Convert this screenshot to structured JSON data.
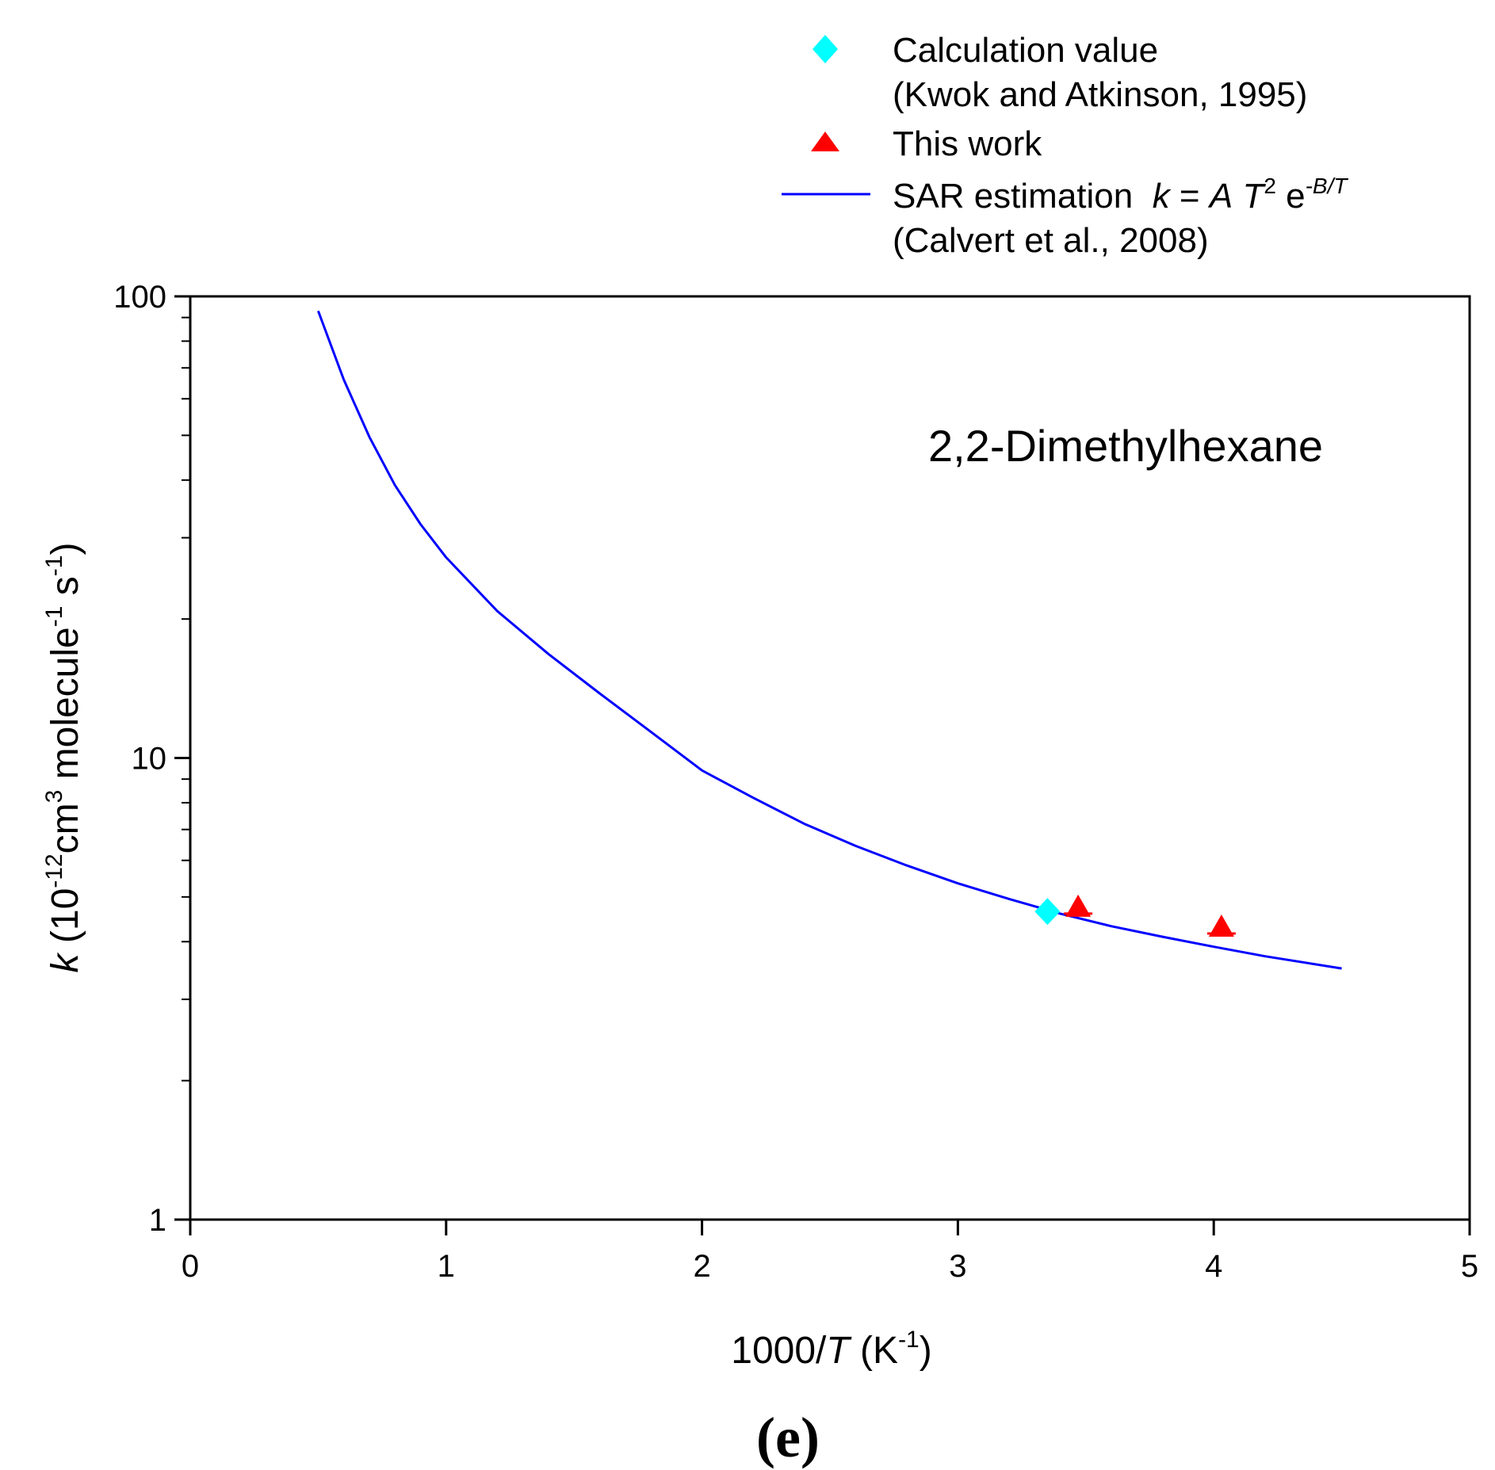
{
  "chart_data": {
    "type": "scatter",
    "title": "2,2-Dimethylhexane",
    "panel_label": "(e)",
    "xlabel": {
      "prefix": "1000/",
      "var": "T",
      "unit_open": " (K",
      "unit_sup": "-1",
      "unit_close": ")"
    },
    "ylabel": {
      "var": "k",
      "p1": " (10",
      "s1": "-12",
      "p2": "cm",
      "s2": "3",
      "p3": " molecule",
      "s3": "-1",
      "p4": " s",
      "s4": "-1",
      "p5": ")"
    },
    "xlim": [
      0,
      5
    ],
    "ylim": [
      1,
      100
    ],
    "yscale": "log",
    "xticks": [
      0,
      1,
      2,
      3,
      4,
      5
    ],
    "xtick_labels": [
      "0",
      "1",
      "2",
      "3",
      "4",
      "5"
    ],
    "yticks": [
      1,
      10,
      100
    ],
    "ytick_labels": [
      "1",
      "10",
      "100"
    ],
    "series": [
      {
        "name": "Calculation value (Kwok and Atkinson, 1995)",
        "kind": "scatter",
        "marker": "diamond",
        "color": "#00ffff",
        "x": [
          3.35
        ],
        "y": [
          4.65
        ]
      },
      {
        "name": "This work",
        "kind": "scatter",
        "marker": "triangle",
        "color": "#ff0000",
        "x": [
          3.47,
          4.03
        ],
        "y": [
          4.75,
          4.3
        ]
      },
      {
        "name": "SAR estimation (Calvert et al., 2008)",
        "kind": "line",
        "color": "#0000ff",
        "x": [
          0.5,
          0.6,
          0.7,
          0.8,
          0.9,
          1.0,
          1.2,
          1.4,
          1.6,
          1.8,
          2.0,
          2.2,
          2.4,
          2.6,
          2.8,
          3.0,
          3.2,
          3.4,
          3.6,
          3.8,
          4.0,
          4.2,
          4.5
        ],
        "y": [
          93,
          66,
          49.6,
          39.0,
          32.1,
          27.2,
          20.8,
          16.8,
          13.8,
          11.4,
          9.4,
          8.2,
          7.2,
          6.45,
          5.85,
          5.35,
          4.95,
          4.6,
          4.32,
          4.1,
          3.9,
          3.72,
          3.5
        ]
      }
    ],
    "legend": {
      "placement": "top-right",
      "items": [
        {
          "line1": "Calculation value",
          "line2": "(Kwok and Atkinson, 1995)"
        },
        {
          "line1": "This work",
          "line2": ""
        },
        {
          "line1_plain": "SAR estimation  ",
          "f_k": "k",
          "f_eq": " = ",
          "f_A": "A",
          "f_T": "T",
          "f_Tsup": "2",
          "f_e": " e",
          "f_esup": "-B/T",
          "line2": "(Calvert et al., 2008)"
        }
      ]
    }
  }
}
